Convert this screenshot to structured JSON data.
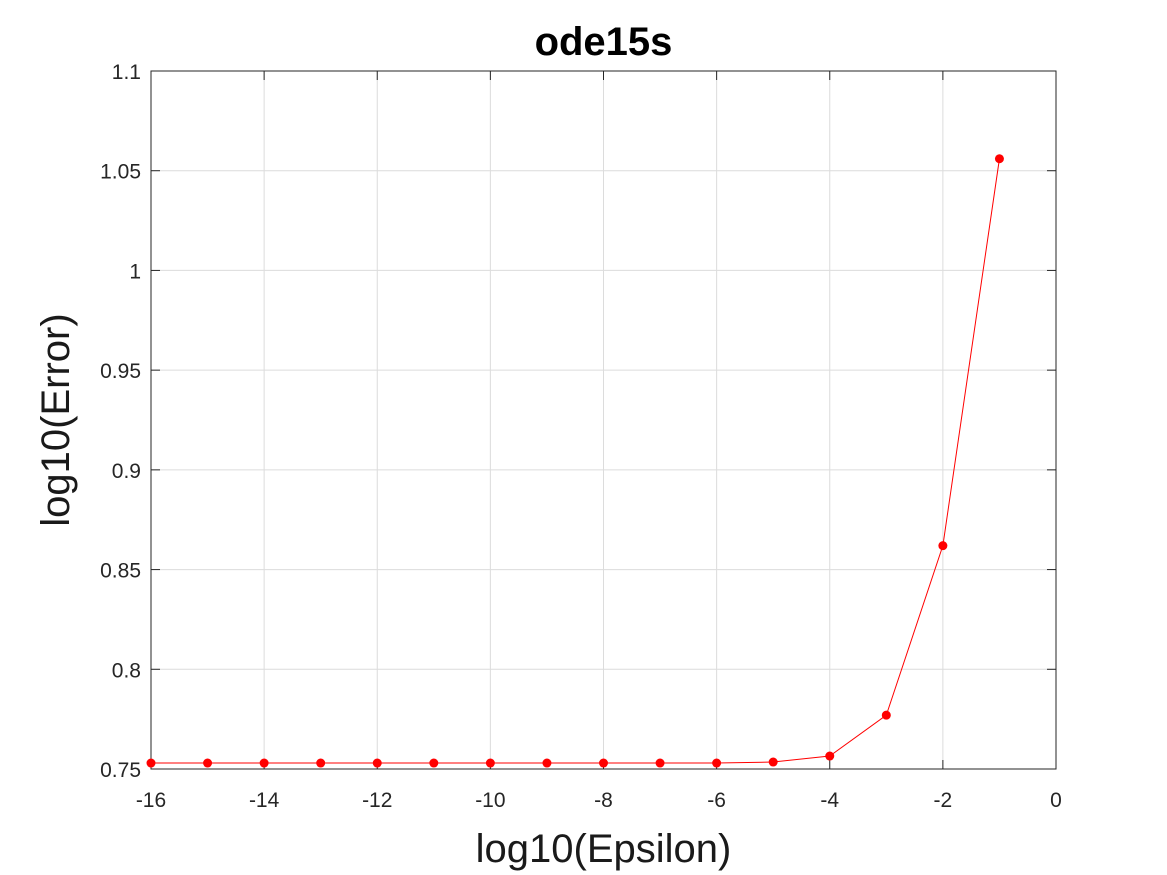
{
  "chart_data": {
    "type": "line",
    "title": "ode15s",
    "xlabel": "log10(Epsilon)",
    "ylabel": "log10(Error)",
    "xlim": [
      -16,
      0
    ],
    "ylim": [
      0.75,
      1.1
    ],
    "xticks": [
      -16,
      -14,
      -12,
      -10,
      -8,
      -6,
      -4,
      -2,
      0
    ],
    "yticks": [
      0.75,
      0.8,
      0.85,
      0.9,
      0.95,
      1,
      1.05,
      1.1
    ],
    "xtick_labels": [
      "-16",
      "-14",
      "-12",
      "-10",
      "-8",
      "-6",
      "-4",
      "-2",
      "0"
    ],
    "ytick_labels": [
      "0.75",
      "0.8",
      "0.85",
      "0.9",
      "0.95",
      "1",
      "1.05",
      "1.1"
    ],
    "grid": true,
    "series": [
      {
        "color": "#ff0000",
        "marker": "circle",
        "x": [
          -16,
          -15,
          -14,
          -13,
          -12,
          -11,
          -10,
          -9,
          -8,
          -7,
          -6,
          -5,
          -4,
          -3,
          -2,
          -1
        ],
        "y": [
          0.753,
          0.753,
          0.753,
          0.753,
          0.753,
          0.753,
          0.753,
          0.753,
          0.753,
          0.753,
          0.753,
          0.7535,
          0.7565,
          0.777,
          0.862,
          1.056
        ]
      }
    ]
  }
}
